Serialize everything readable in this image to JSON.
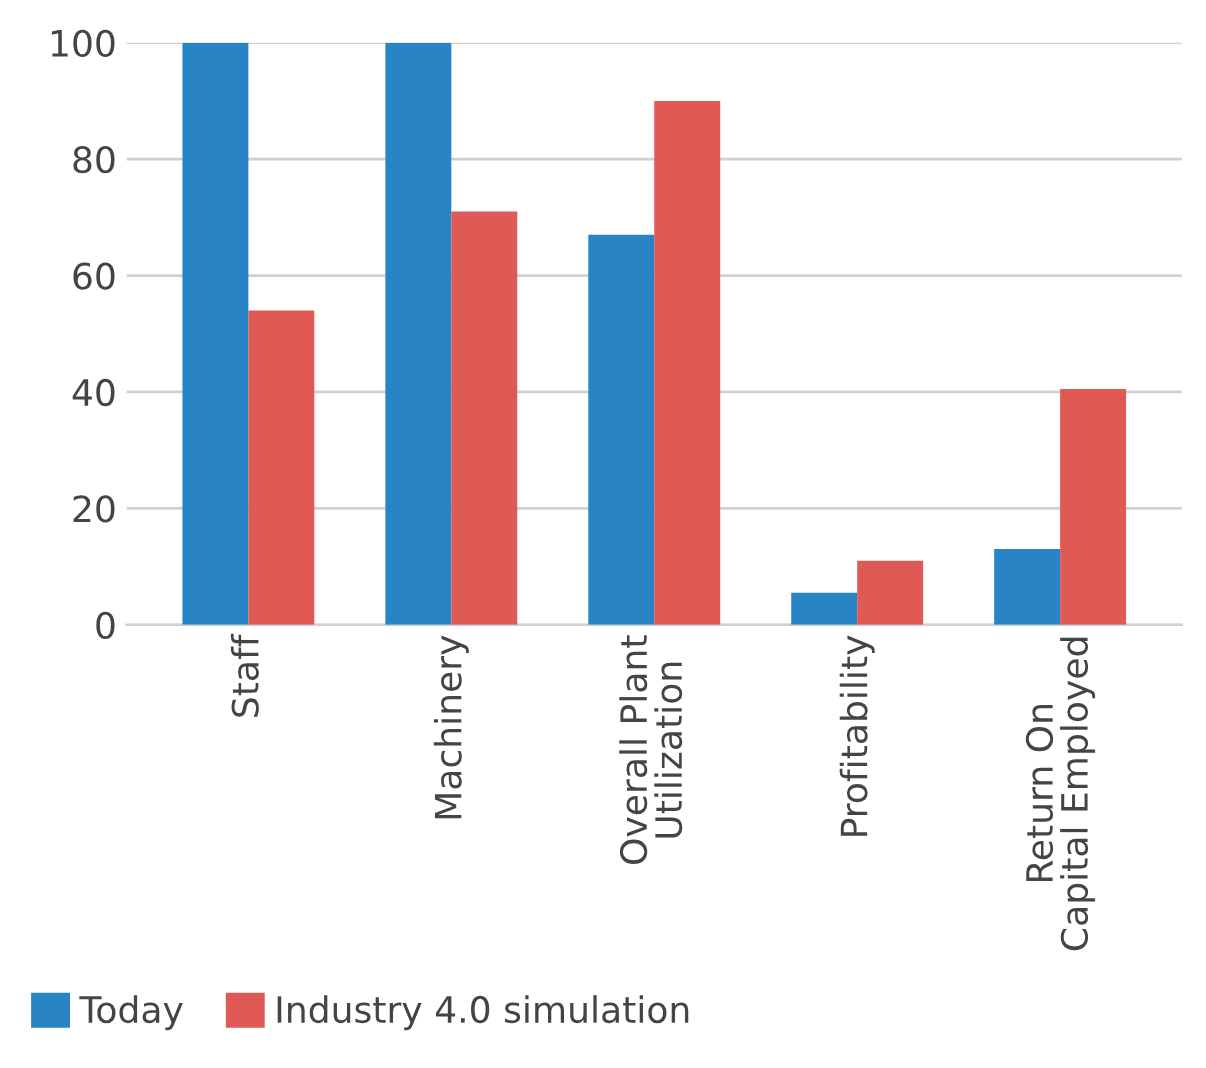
{
  "chart_data": {
    "type": "bar",
    "categories": [
      "Staff",
      "Machinery",
      "Overall Plant\nUtilization",
      "Profitability",
      "Return On\nCapital Employed"
    ],
    "series": [
      {
        "name": "Today",
        "color": "#2884c4",
        "values": [
          100,
          100,
          67,
          5.5,
          13
        ]
      },
      {
        "name": "Industry 4.0 simulation",
        "color": "#e05a55",
        "values": [
          54,
          71,
          90,
          11,
          40.5
        ]
      }
    ],
    "ylim": [
      0,
      100
    ],
    "yticks": [
      0,
      20,
      40,
      60,
      80,
      100
    ],
    "grid": "y",
    "legend": "bottom left"
  }
}
